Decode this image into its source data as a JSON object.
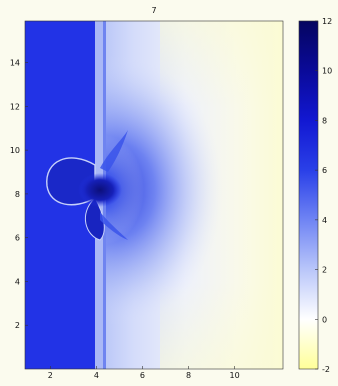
{
  "chart_data": {
    "type": "heatmap",
    "title": "7",
    "xlabel": "",
    "ylabel": "",
    "xlim": [
      0.9,
      12.1
    ],
    "ylim": [
      0,
      15.9
    ],
    "x_ticks": [
      "2",
      "4",
      "6",
      "8",
      "10"
    ],
    "y_ticks": [
      "2",
      "4",
      "6",
      "8",
      "10",
      "12",
      "14"
    ],
    "x_tick_values": [
      2,
      4,
      6,
      8,
      10
    ],
    "y_tick_values": [
      2,
      4,
      6,
      8,
      10,
      12,
      14
    ],
    "colorbar": {
      "min": -2,
      "max": 12,
      "ticks": [
        "-2",
        "0",
        "2",
        "4",
        "6",
        "8",
        "10",
        "12"
      ],
      "tick_values": [
        -2,
        0,
        2,
        4,
        6,
        8,
        10,
        12
      ],
      "colormap": [
        "#ffff99",
        "#ffffff",
        "#b9c6fa",
        "#6f84f4",
        "#2a40e8",
        "#1218d2",
        "#0a0a99",
        "#050560"
      ]
    },
    "grid": false,
    "colors": {
      "high_region": "#2233e6",
      "plume_core": "#101080",
      "mid_blue": "#7b8ff2",
      "low_region": "#fbfbd8"
    }
  }
}
